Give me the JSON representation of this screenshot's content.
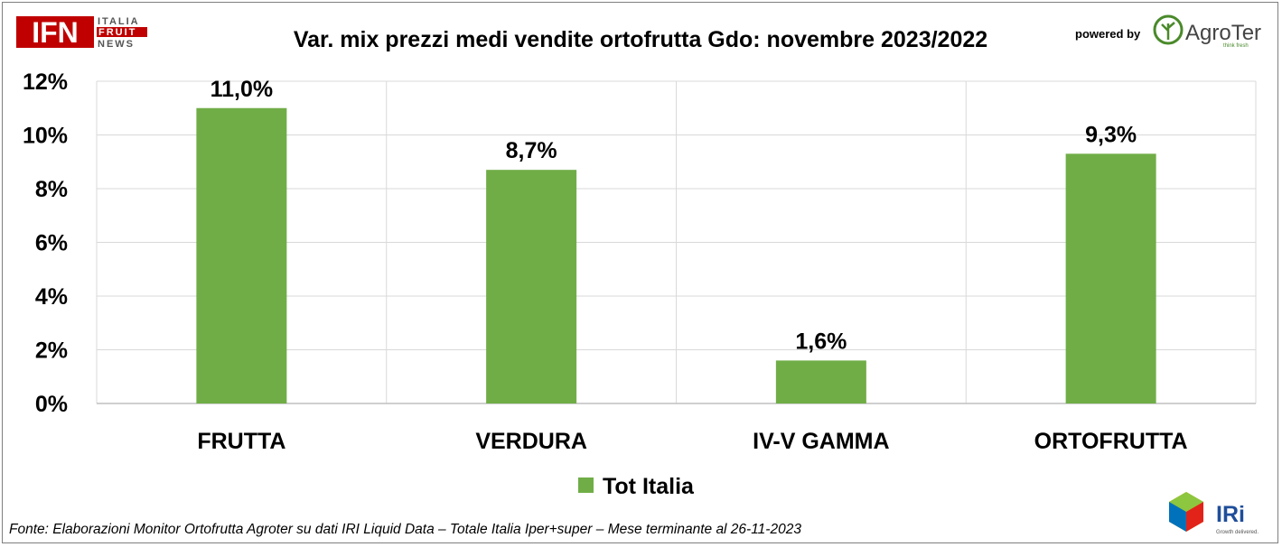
{
  "brand": {
    "ifn_mark": "IFN",
    "ifn_lines": [
      "ITALIA",
      "FRUIT",
      "NEWS"
    ],
    "powered_by": "powered by",
    "agroter_name": "AgroTer",
    "agroter_tagline": "think fresh",
    "iri_name": "IRi",
    "iri_tagline": "Growth delivered."
  },
  "source_note": "Fonte: Elaborazioni Monitor Ortofrutta Agroter su dati IRI Liquid Data – Totale Italia Iper+super – Mese terminante al 26-11-2023",
  "colors": {
    "bar": "#70ad47",
    "grid": "#d9d9d9",
    "axis": "#bfbfbf",
    "ifn_red": "#c00000"
  },
  "chart_data": {
    "type": "bar",
    "title": "Var. mix prezzi medi vendite ortofrutta Gdo: novembre 2023/2022",
    "categories": [
      "FRUTTA",
      "VERDURA",
      "IV-V GAMMA",
      "ORTOFRUTTA"
    ],
    "series": [
      {
        "name": "Tot Italia",
        "values": [
          11.0,
          8.7,
          1.6,
          9.3
        ],
        "labels": [
          "11,0%",
          "8,7%",
          "1,6%",
          "9,3%"
        ]
      }
    ],
    "ylim": [
      0,
      12
    ],
    "yticks": [
      0,
      2,
      4,
      6,
      8,
      10,
      12
    ],
    "ytick_labels": [
      "0%",
      "2%",
      "4%",
      "6%",
      "8%",
      "10%",
      "12%"
    ],
    "grid": true,
    "legend_position": "bottom"
  }
}
